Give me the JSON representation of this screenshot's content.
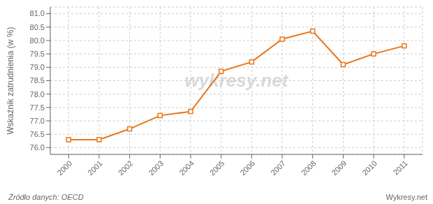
{
  "chart_data": {
    "type": "line",
    "y_label": "Wskaźnik zatrudnienia (w %)",
    "annotations": [
      "wykresy.net",
      "Źródło danych:  OECD",
      "Wykresy.net"
    ],
    "x": [
      2000,
      2001,
      2002,
      2003,
      2004,
      2005,
      2006,
      2007,
      2008,
      2009,
      2010,
      2011
    ],
    "values": [
      76.3,
      76.3,
      76.7,
      77.2,
      77.35,
      78.85,
      79.2,
      80.05,
      80.35,
      79.1,
      79.5,
      79.8
    ],
    "color": "#E8761A",
    "marker": "square",
    "xlim": [
      1999.4,
      2011.6
    ],
    "xticks": [
      2000,
      2001,
      2002,
      2003,
      2004,
      2005,
      2006,
      2007,
      2008,
      2009,
      2010,
      2011
    ],
    "ylim": [
      75.75,
      81.25
    ],
    "yticks": [
      {
        "value": 76.0,
        "label": "76.0"
      },
      {
        "value": 76.5,
        "label": "76.5"
      },
      {
        "value": 77.0,
        "label": "77.0"
      },
      {
        "value": 77.5,
        "label": "77.5"
      },
      {
        "value": 78.0,
        "label": "78.0"
      },
      {
        "value": 78.5,
        "label": "78.5"
      },
      {
        "value": 79.0,
        "label": "79.0"
      },
      {
        "value": 79.5,
        "label": "79.5"
      },
      {
        "value": 80.0,
        "label": "80.0"
      },
      {
        "value": 80.5,
        "label": "80.5"
      },
      {
        "value": 81.0,
        "label": "81.0"
      }
    ],
    "grid": true
  }
}
